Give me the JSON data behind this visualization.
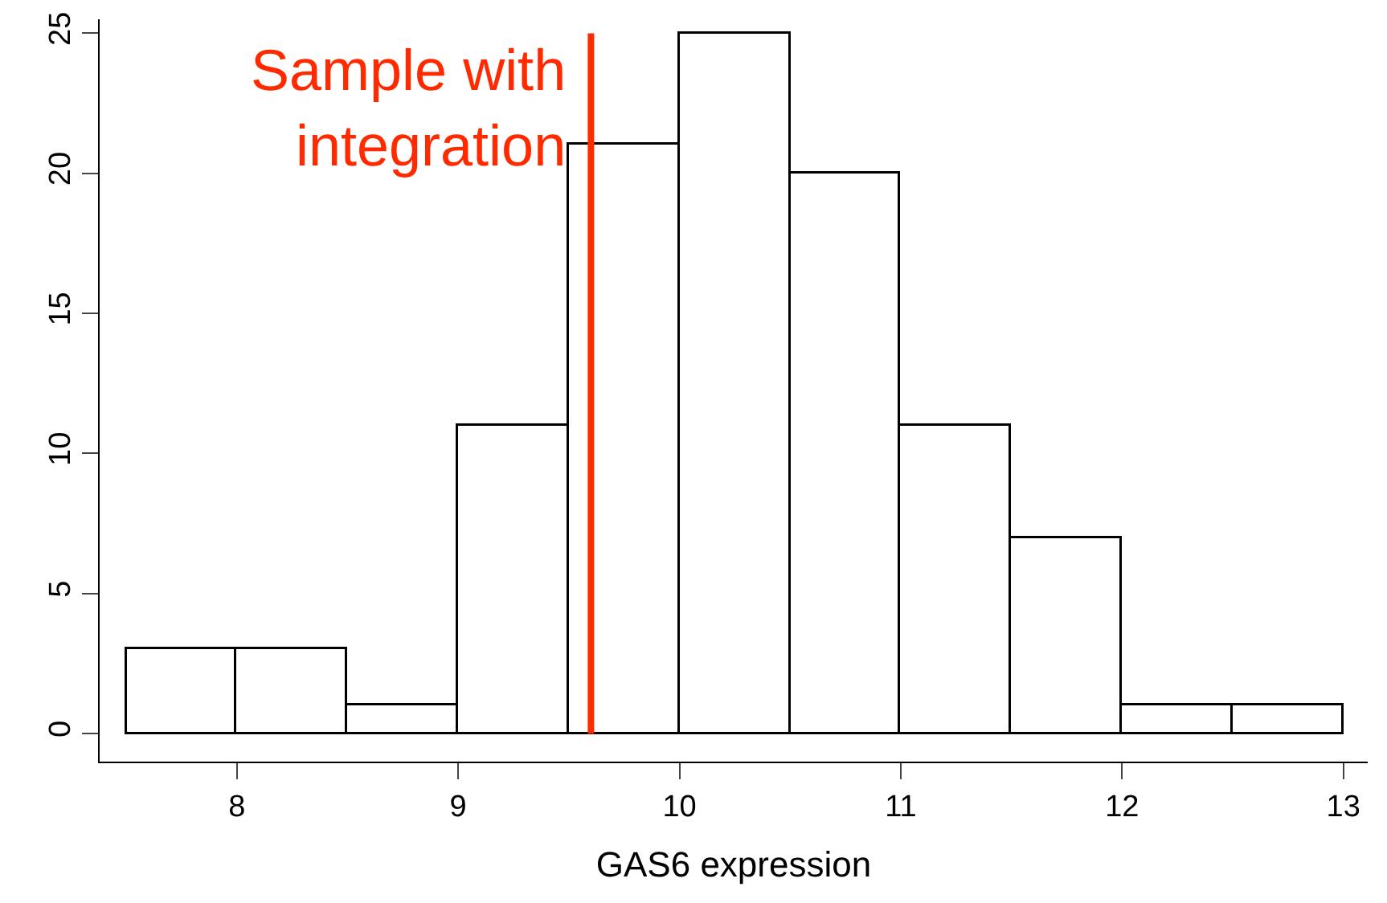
{
  "chart_data": {
    "type": "histogram",
    "xlabel": "GAS6 expression",
    "bins": [
      7.5,
      8,
      8.5,
      9,
      9.5,
      10,
      10.5,
      11,
      11.5,
      12,
      12.5,
      13
    ],
    "values": [
      3,
      3,
      1,
      11,
      21,
      25,
      20,
      11,
      7,
      1,
      1
    ],
    "color": "#ffffff",
    "xlim": [
      7.38,
      13.11
    ],
    "xticks": [
      8,
      9,
      10,
      11,
      12,
      13
    ],
    "ylim": [
      -1,
      25.5
    ],
    "yticks": [
      0,
      5,
      10,
      15,
      20,
      25
    ],
    "grid": false,
    "legend": false,
    "ref_lines": [
      {
        "axis": "x",
        "value": 9.6,
        "label": "Sample with\nintegration",
        "color": "#ff2a00"
      }
    ]
  }
}
